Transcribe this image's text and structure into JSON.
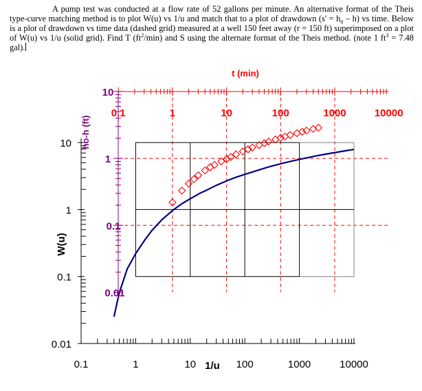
{
  "problem": {
    "p1": "A pump test was conducted at a flow rate of 52 gallons per minute.  An alternative format of the Theis type-curve matching method is to plot W(u) vs 1/u and match that to a plot of drawdown (s' = h",
    "s1": "0",
    "p2": " – h) vs time.  Below is a plot of drawdown vs time data (dashed grid) measured at a well 150 feet away (r = 150 ft) superimposed on a plot of W(u) vs 1/u (solid grid).  Find T (ft",
    "s2": "2",
    "p3": "/min) and S using the alternate format of the Theis method. (note 1 ft",
    "s3": "3",
    "p4": " = 7.48 gal)."
  },
  "colors": {
    "type_curve": "#000080",
    "data_points": "#ff0000",
    "time_axis": "#ff0000",
    "drawdown_axis": "#800080",
    "solid_grid": "#000000",
    "dashed_grid": "#ff0000"
  },
  "chart_data": [
    {
      "type": "line",
      "grid": "solid",
      "xlabel": "1/u",
      "ylabel": "W(u)",
      "xscale": "log",
      "yscale": "log",
      "xlim": [
        0.1,
        10000
      ],
      "ylim": [
        0.01,
        10
      ],
      "x_ticks": [
        "0.1",
        "1",
        "10",
        "100",
        "1000",
        "10000"
      ],
      "y_ticks": [
        "0.01",
        "0.1",
        "1",
        "10"
      ],
      "series": [
        {
          "x": [
            0.4,
            0.5,
            0.7,
            1,
            1.5,
            2,
            3,
            4,
            5,
            7,
            10,
            15,
            20,
            30,
            50,
            70,
            100,
            200,
            300,
            500,
            700,
            1000,
            2000,
            3000,
            5000,
            7000,
            10000
          ],
          "y": [
            0.025,
            0.057,
            0.13,
            0.22,
            0.36,
            0.49,
            0.7,
            0.86,
            1.0,
            1.22,
            1.45,
            1.75,
            1.95,
            2.3,
            2.75,
            3.05,
            3.35,
            4.0,
            4.42,
            4.92,
            5.25,
            5.6,
            6.3,
            6.7,
            7.2,
            7.55,
            7.9
          ]
        }
      ]
    },
    {
      "type": "scatter",
      "grid": "dashed",
      "xlabel": "t (min)",
      "ylabel": "ho-h (ft)",
      "xscale": "log",
      "yscale": "log",
      "xlim": [
        0.1,
        10000
      ],
      "ylim": [
        0.01,
        10
      ],
      "x_ticks": [
        "0.1",
        "1",
        "10",
        "100",
        "1000",
        "10000"
      ],
      "y_ticks": [
        "0.01",
        "0.1",
        "1",
        "10"
      ],
      "series": [
        {
          "x": [
            1,
            1.5,
            2,
            2.5,
            3,
            4,
            5,
            6,
            8,
            10,
            12,
            15,
            20,
            25,
            30,
            40,
            50,
            60,
            80,
            100,
            120,
            150,
            200,
            250,
            300,
            400,
            500
          ],
          "y": [
            0.22,
            0.33,
            0.42,
            0.49,
            0.56,
            0.66,
            0.74,
            0.8,
            0.9,
            0.98,
            1.05,
            1.15,
            1.27,
            1.37,
            1.45,
            1.58,
            1.69,
            1.78,
            1.92,
            2.03,
            2.12,
            2.24,
            2.38,
            2.5,
            2.6,
            2.76,
            2.87
          ]
        }
      ]
    }
  ]
}
